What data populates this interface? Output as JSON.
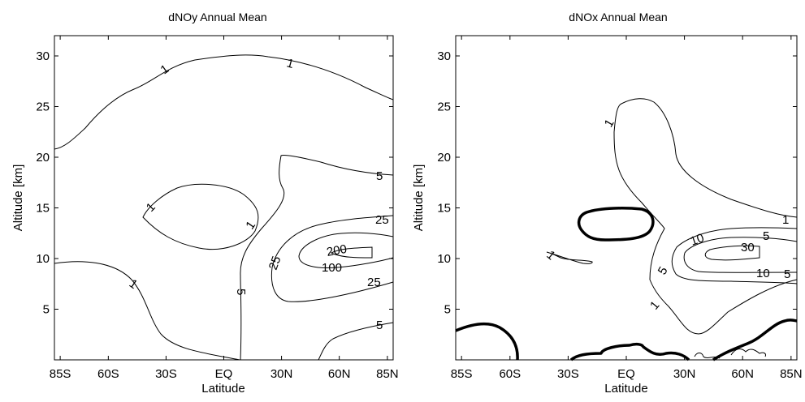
{
  "chart_data": [
    {
      "type": "contour",
      "title": "dNOy Annual Mean",
      "xlabel": "Latitude",
      "ylabel": "Altitude  [km]",
      "xlim": [
        -88,
        88
      ],
      "ylim": [
        0,
        32
      ],
      "xticks": [
        -85,
        -60,
        -30,
        0,
        30,
        60,
        85
      ],
      "xtick_labels": [
        "85S",
        "60S",
        "30S",
        "EQ",
        "30N",
        "60N",
        "85N"
      ],
      "yticks": [
        5,
        10,
        15,
        20,
        25,
        30
      ],
      "ytick_labels": [
        "5",
        "10",
        "15",
        "20",
        "25",
        "30"
      ],
      "contour_labels": [
        {
          "text": "1",
          "x": -43,
          "y": 28.8
        },
        {
          "text": "1",
          "x": 19,
          "y": 29.2
        },
        {
          "text": "1",
          "x": -37,
          "y": 14.9
        },
        {
          "text": "1",
          "x": 10,
          "y": 13.0
        },
        {
          "text": "1",
          "x": -62,
          "y": 8.3
        },
        {
          "text": "5",
          "x": 83,
          "y": 18.1
        },
        {
          "text": "5",
          "x": 3,
          "y": 4.8
        },
        {
          "text": "5",
          "x": 83,
          "y": 3.3
        },
        {
          "text": "25",
          "x": 81,
          "y": 13.9
        },
        {
          "text": "25",
          "x": 36,
          "y": 10.3
        },
        {
          "text": "25",
          "x": 77,
          "y": 5.8
        },
        {
          "text": "200",
          "x": 59,
          "y": 10.5
        },
        {
          "text": "100",
          "x": 51,
          "y": 7.7
        }
      ]
    },
    {
      "type": "contour",
      "title": "dNOx Annual Mean",
      "xlabel": "Latitude",
      "ylabel": "Altitude  [km]",
      "xlim": [
        -88,
        88
      ],
      "ylim": [
        0,
        32
      ],
      "xticks": [
        -85,
        -60,
        -30,
        0,
        30,
        60,
        85
      ],
      "xtick_labels": [
        "85S",
        "60S",
        "30S",
        "EQ",
        "30N",
        "60N",
        "85N"
      ],
      "yticks": [
        5,
        10,
        15,
        20,
        25,
        30
      ],
      "ytick_labels": [
        "5",
        "10",
        "15",
        "20",
        "25",
        "30"
      ],
      "contour_labels": [
        {
          "text": "1",
          "x": -7,
          "y": 22.2
        },
        {
          "text": "1",
          "x": 85,
          "y": 13.8
        },
        {
          "text": "1",
          "x": -41,
          "y": 10.3
        },
        {
          "text": "1",
          "x": 25,
          "y": 4.3
        },
        {
          "text": "5",
          "x": 80,
          "y": 11.5
        },
        {
          "text": "5",
          "x": 37,
          "y": 7.3
        },
        {
          "text": "5",
          "x": 86,
          "y": 7.6
        },
        {
          "text": "10",
          "x": 45,
          "y": 11.0
        },
        {
          "text": "10",
          "x": 74,
          "y": 7.8
        },
        {
          "text": "30",
          "x": 66,
          "y": 10.6
        }
      ]
    }
  ]
}
